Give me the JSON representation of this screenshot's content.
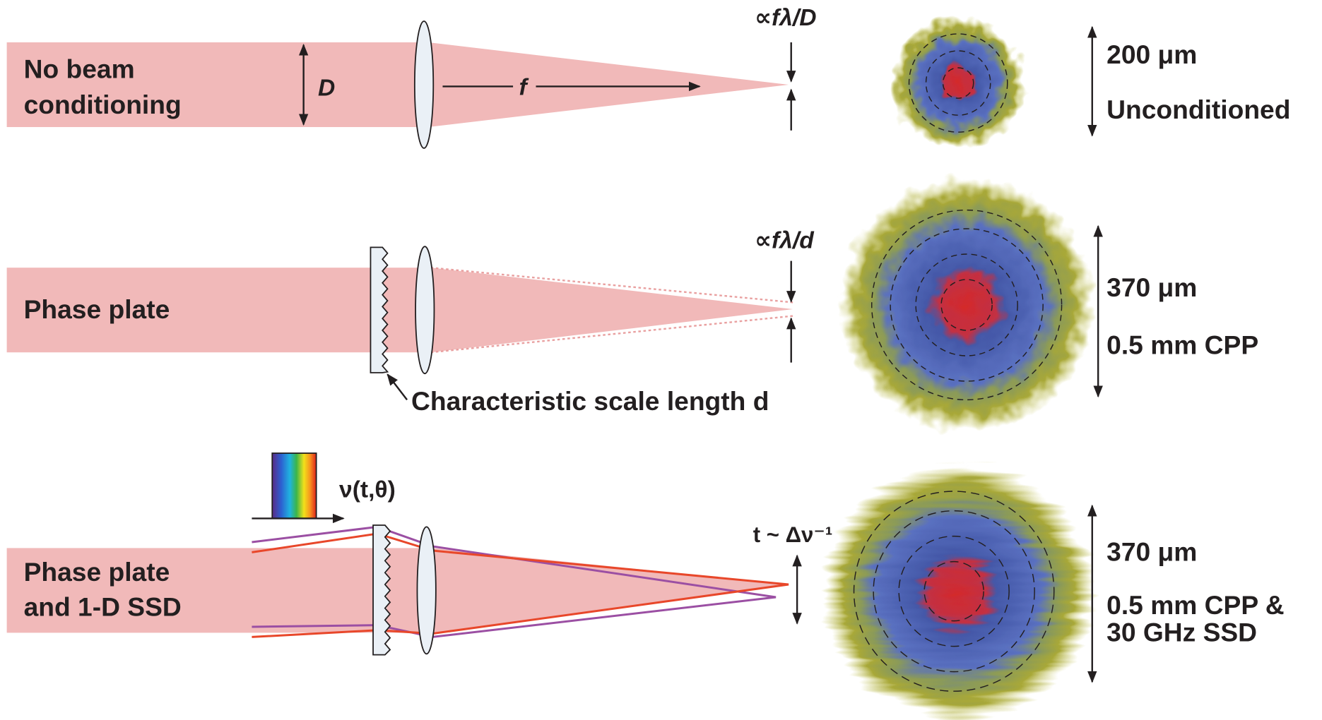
{
  "rows": [
    {
      "label_lines": [
        "No beam",
        "conditioning"
      ],
      "diameter_label": "D",
      "focal_label": "f",
      "spot_size_label": "∝fλ/D",
      "scale_label": "200 μm",
      "caption_lines": [
        "Unconditioned"
      ]
    },
    {
      "label_lines": [
        "Phase plate"
      ],
      "spot_size_label": "∝fλ/d",
      "plate_note": "Characteristic scale length d",
      "scale_label": "370 μm",
      "caption_lines": [
        "0.5 mm CPP"
      ]
    },
    {
      "label_lines": [
        "Phase plate",
        "and 1-D SSD"
      ],
      "pulse_label": "ν(t,θ)",
      "spot_size_label": "t ~ Δν⁻¹",
      "scale_label": "370 μm",
      "caption_lines": [
        "0.5 mm CPP &",
        "30 GHz SSD"
      ]
    }
  ]
}
